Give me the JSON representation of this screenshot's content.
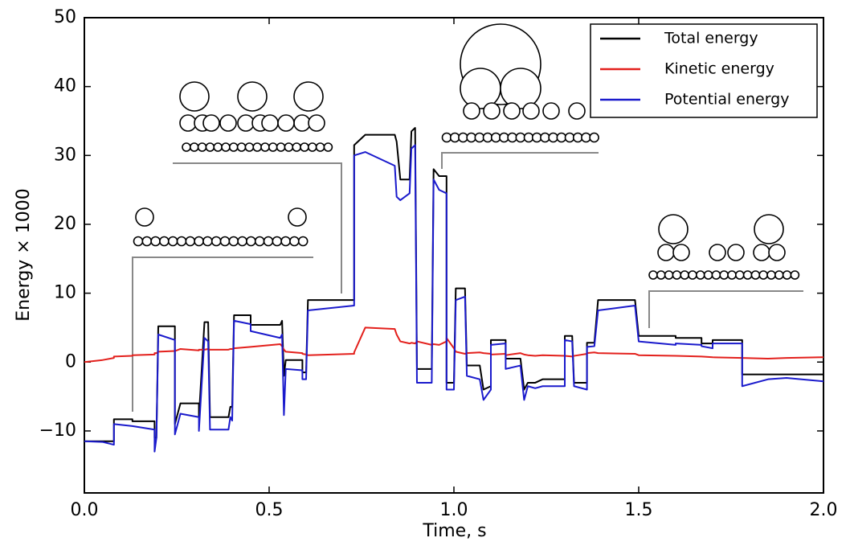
{
  "chart_data": {
    "type": "line",
    "xlabel": "Time, s",
    "ylabel": "Energy × 1000",
    "x": [
      0,
      0.05,
      0.08,
      0.08,
      0.13,
      0.13,
      0.19,
      0.19,
      0.195,
      0.2,
      0.245,
      0.245,
      0.26,
      0.31,
      0.31,
      0.325,
      0.335,
      0.34,
      0.39,
      0.395,
      0.4,
      0.405,
      0.45,
      0.45,
      0.53,
      0.535,
      0.54,
      0.545,
      0.59,
      0.59,
      0.6,
      0.605,
      0.73,
      0.73,
      0.76,
      0.84,
      0.845,
      0.855,
      0.88,
      0.885,
      0.895,
      0.9,
      0.94,
      0.945,
      0.96,
      0.98,
      0.98,
      1.0,
      1.005,
      1.03,
      1.035,
      1.07,
      1.08,
      1.1,
      1.1,
      1.14,
      1.14,
      1.18,
      1.19,
      1.2,
      1.22,
      1.24,
      1.3,
      1.3,
      1.32,
      1.325,
      1.36,
      1.36,
      1.38,
      1.39,
      1.49,
      1.5,
      1.6,
      1.6,
      1.67,
      1.67,
      1.7,
      1.7,
      1.78,
      1.78,
      1.85,
      1.9,
      2.0
    ],
    "series": [
      {
        "name": "Total energy",
        "color": "#000000",
        "values": [
          -11.5,
          -11.5,
          -11.5,
          -8.3,
          -8.3,
          -8.6,
          -8.6,
          -11,
          -11,
          5.2,
          5.2,
          -9,
          -6,
          -6,
          -8,
          5.8,
          5.8,
          -8,
          -8,
          -6.5,
          -6.5,
          6.8,
          6.8,
          5.4,
          5.4,
          6,
          -2,
          0.3,
          0.3,
          -1.5,
          -1.5,
          9,
          9,
          31.5,
          33,
          33,
          32,
          26.5,
          26.5,
          33.5,
          34,
          -1,
          -1,
          28,
          27,
          27,
          -3,
          -3,
          10.7,
          10.7,
          -0.5,
          -0.5,
          -4,
          -3.5,
          3.2,
          3.2,
          0.5,
          0.5,
          -4,
          -3,
          -3,
          -2.5,
          -2.5,
          3.8,
          3.8,
          -3,
          -3,
          2.8,
          2.8,
          9,
          9,
          3.8,
          3.8,
          3.5,
          3.5,
          2.7,
          2.7,
          3.2,
          3.2,
          -1.8,
          -1.8,
          -1.8,
          -1.8
        ]
      },
      {
        "name": "Kinetic energy",
        "color": "#e3201c",
        "values": [
          0,
          0.3,
          0.6,
          0.8,
          0.9,
          1.0,
          1.1,
          1.3,
          1.3,
          1.5,
          1.6,
          1.6,
          1.9,
          1.7,
          1.8,
          1.8,
          1.9,
          1.8,
          1.8,
          1.9,
          1.9,
          2.0,
          2.2,
          2.2,
          2.6,
          2.3,
          1.8,
          1.5,
          1.3,
          1.2,
          1.1,
          1.0,
          1.2,
          1.4,
          5.0,
          4.8,
          4.0,
          3.0,
          2.7,
          2.8,
          2.7,
          3.0,
          2.5,
          2.6,
          2.5,
          3.0,
          3.5,
          2.0,
          1.5,
          1.2,
          1.3,
          1.4,
          1.3,
          1.2,
          1.1,
          1.2,
          1.0,
          1.3,
          1.1,
          1.0,
          0.9,
          1.0,
          0.9,
          0.9,
          0.8,
          0.9,
          1.2,
          1.3,
          1.4,
          1.3,
          1.2,
          1.0,
          0.9,
          0.9,
          0.8,
          0.8,
          0.7,
          0.7,
          0.6,
          0.6,
          0.5,
          0.6,
          0.7
        ]
      },
      {
        "name": "Potential energy",
        "color": "#1a1acc",
        "values": [
          -11.5,
          -11.6,
          -12,
          -9,
          -9.3,
          -9.3,
          -9.8,
          -13,
          -11,
          4,
          3.2,
          -10.5,
          -7.5,
          -8,
          -10,
          3.5,
          3,
          -9.8,
          -9.8,
          -8,
          -8.5,
          6,
          5.5,
          4.5,
          3.5,
          4,
          -7.7,
          -1,
          -1.2,
          -2.5,
          -2.5,
          7.5,
          8.2,
          30,
          30.5,
          28.5,
          24,
          23.5,
          24.5,
          31,
          31.5,
          -3,
          -3,
          26.5,
          25,
          24.5,
          -4,
          -4,
          9,
          9.5,
          -2,
          -2.5,
          -5.5,
          -4,
          2.5,
          2.7,
          -1,
          -0.5,
          -5.5,
          -3.5,
          -3.8,
          -3.5,
          -3.5,
          3.2,
          3,
          -3.5,
          -4,
          2.2,
          2.3,
          7.5,
          8.2,
          3,
          2.5,
          2.7,
          2.5,
          2.3,
          2,
          2.7,
          2.7,
          -3.5,
          -2.5,
          -2.3,
          -2.8
        ]
      }
    ],
    "xlim": [
      0,
      2.0
    ],
    "xticks": [
      {
        "value": 0,
        "label": "0.0"
      },
      0.5,
      {
        "value": 1,
        "label": "1.0"
      },
      1.5,
      {
        "value": 2,
        "label": "2.0"
      }
    ],
    "ylim": [
      -19,
      50
    ],
    "yticks": [
      {
        "value": -10,
        "label": "−10"
      },
      0,
      10,
      20,
      30,
      40,
      50
    ],
    "legend": "upper right"
  }
}
